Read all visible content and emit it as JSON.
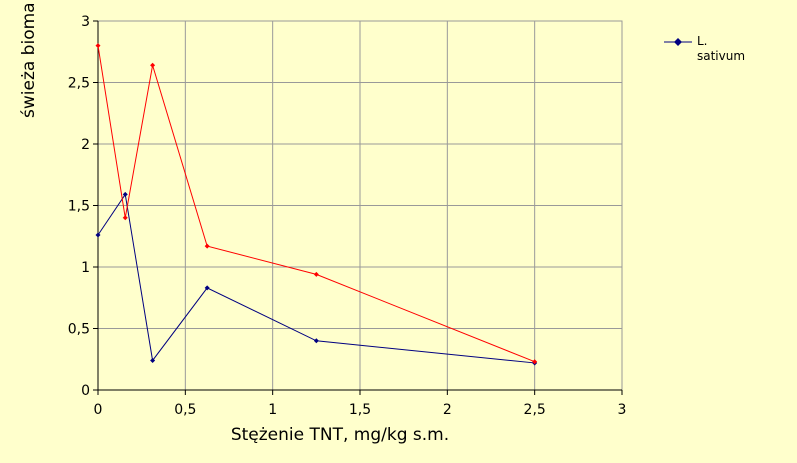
{
  "chart_data": {
    "type": "line",
    "x_label": "Stężenie TNT, mg/kg s.m.",
    "y_label": "świeża bioma",
    "xlim": [
      0,
      3
    ],
    "xticks": [
      0,
      {
        "value": 0.5,
        "label": "0,5"
      },
      1,
      {
        "value": 1.5,
        "label": "1,5"
      },
      2,
      {
        "value": 2.5,
        "label": "2,5"
      },
      3
    ],
    "ylim": [
      0,
      3
    ],
    "yticks": [
      0,
      {
        "value": 0.5,
        "label": "0,5"
      },
      1,
      {
        "value": 1.5,
        "label": "1,5"
      },
      2,
      {
        "value": 2.5,
        "label": "2,5"
      },
      3
    ],
    "grid": true,
    "series": [
      {
        "name": "L. sativum",
        "color": "#000080",
        "x": [
          0,
          0.156,
          0.3125,
          0.625,
          1.25,
          2.5
        ],
        "values": [
          1.26,
          1.59,
          0.24,
          0.83,
          0.4,
          0.22
        ]
      },
      {
        "color": "#ff0000",
        "x": [
          0,
          0.156,
          0.3125,
          0.625,
          1.25,
          2.5
        ],
        "values": [
          2.8,
          1.4,
          2.64,
          1.17,
          0.94,
          0.23
        ]
      }
    ]
  }
}
